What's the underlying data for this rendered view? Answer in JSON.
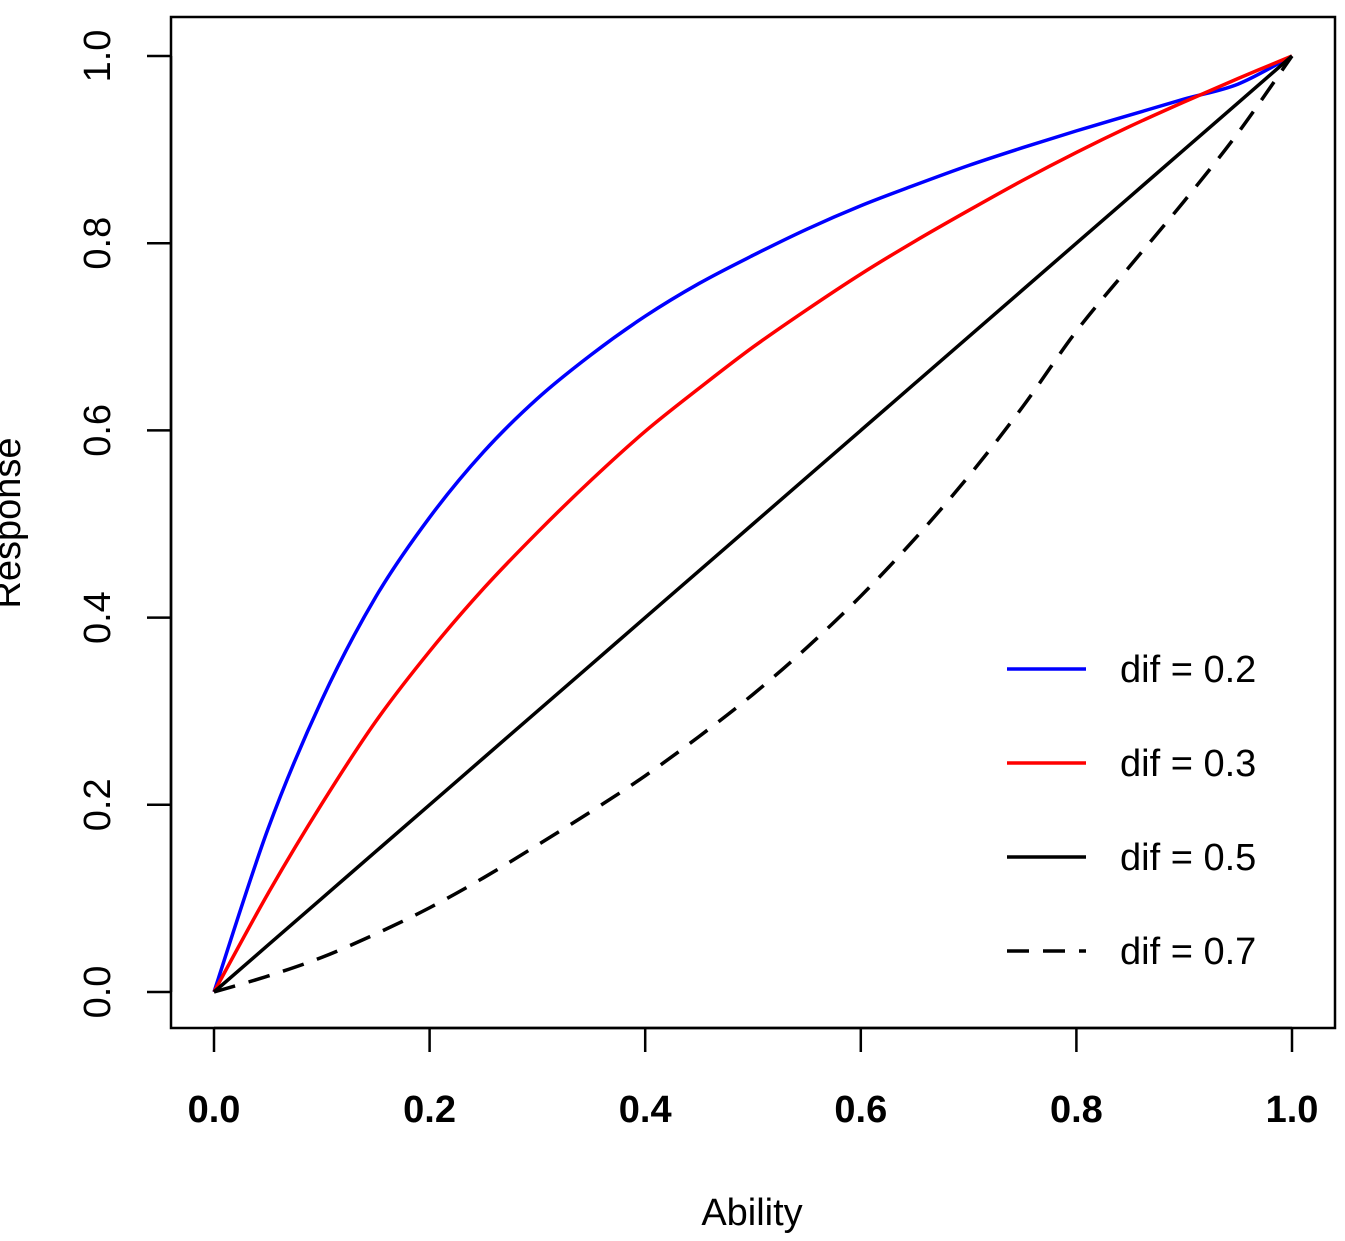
{
  "chart_data": {
    "type": "line",
    "title": "",
    "xlabel": "Ability",
    "ylabel": "Response",
    "xlim": [
      0,
      1
    ],
    "ylim": [
      0,
      1
    ],
    "x_ticks": [
      "0.0",
      "0.2",
      "0.4",
      "0.6",
      "0.8",
      "1.0"
    ],
    "y_ticks": [
      "0.0",
      "0.2",
      "0.4",
      "0.6",
      "0.8",
      "1.0"
    ],
    "grid": false,
    "legend_position": "bottom-right",
    "x": [
      0,
      0.05,
      0.1,
      0.15,
      0.2,
      0.25,
      0.3,
      0.35,
      0.4,
      0.45,
      0.5,
      0.55,
      0.6,
      0.65,
      0.7,
      0.75,
      0.8,
      0.85,
      0.9,
      0.95,
      1.0
    ],
    "series": [
      {
        "name": "dif = 0.2",
        "color": "#0000ff",
        "dash": "solid",
        "values": [
          0,
          0.174,
          0.312,
          0.422,
          0.507,
          0.577,
          0.634,
          0.681,
          0.722,
          0.757,
          0.787,
          0.815,
          0.84,
          0.862,
          0.883,
          0.902,
          0.92,
          0.937,
          0.954,
          0.97,
          1.0
        ]
      },
      {
        "name": "dif = 0.3",
        "color": "#ff0000",
        "dash": "solid",
        "values": [
          0,
          0.105,
          0.201,
          0.289,
          0.364,
          0.431,
          0.491,
          0.547,
          0.599,
          0.645,
          0.689,
          0.729,
          0.767,
          0.802,
          0.835,
          0.867,
          0.897,
          0.925,
          0.951,
          0.976,
          1.0
        ]
      },
      {
        "name": "dif = 0.5",
        "color": "#000000",
        "dash": "solid",
        "values": [
          0,
          0.05,
          0.1,
          0.15,
          0.2,
          0.25,
          0.3,
          0.35,
          0.4,
          0.45,
          0.5,
          0.55,
          0.6,
          0.65,
          0.7,
          0.75,
          0.8,
          0.85,
          0.9,
          0.95,
          1.0
        ]
      },
      {
        "name": "dif = 0.7",
        "color": "#000000",
        "dash": "dashed",
        "values": [
          0,
          0.017,
          0.037,
          0.062,
          0.09,
          0.122,
          0.157,
          0.193,
          0.231,
          0.273,
          0.318,
          0.368,
          0.423,
          0.484,
          0.551,
          0.625,
          0.706,
          0.776,
          0.845,
          0.918,
          1.0
        ]
      }
    ]
  }
}
